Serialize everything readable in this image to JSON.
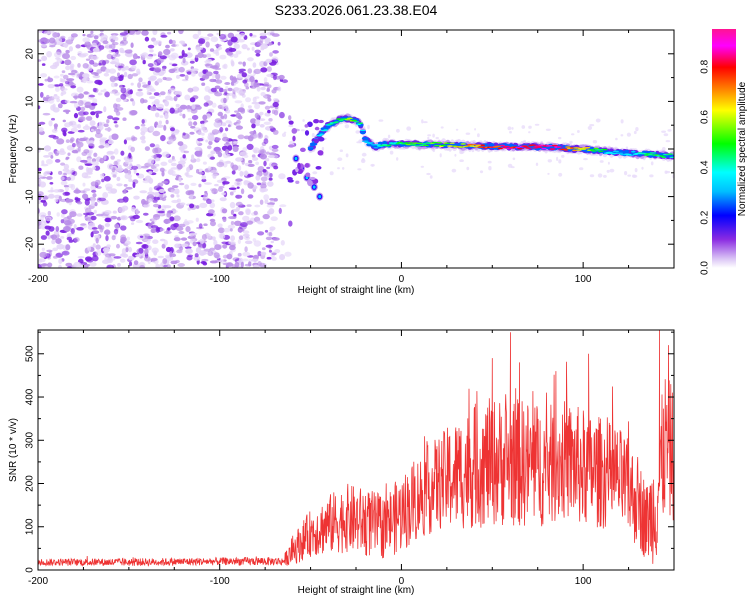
{
  "title": "S233.2026.061.23.38.E04",
  "chart_data": [
    {
      "type": "heatmap",
      "name": "spectrogram",
      "xlabel": "Height of straight line (km)",
      "ylabel": "Frequency (Hz)",
      "xlim": [
        -200,
        150
      ],
      "ylim": [
        -25,
        25
      ],
      "xticks": [
        -200,
        -100,
        0,
        100
      ],
      "xticklabels": [
        "-200",
        "-100",
        "0",
        "100"
      ],
      "yticks": [
        -20,
        -10,
        0,
        10,
        20
      ],
      "yticklabels": [
        "-20",
        "-10",
        "0",
        "10",
        "20"
      ],
      "noise_region_x": [
        -200,
        -68
      ],
      "ridge": {
        "x": [
          -50,
          -45,
          -40,
          -35,
          -30,
          -25,
          -22,
          -20,
          -15,
          -10,
          0,
          20,
          40,
          60,
          80,
          100,
          120,
          140,
          150
        ],
        "freq": [
          0,
          3,
          5,
          6,
          6.5,
          6,
          5,
          2,
          0.5,
          1,
          1,
          1,
          0.6,
          0.5,
          0.4,
          0,
          -0.8,
          -1.2,
          -1.5
        ],
        "peak_amplitude": [
          0.35,
          0.45,
          0.5,
          0.55,
          0.6,
          0.55,
          0.5,
          0.4,
          0.45,
          0.5,
          0.55,
          0.6,
          0.75,
          0.9,
          0.95,
          0.7,
          0.4,
          0.55,
          0.5
        ]
      },
      "branch": {
        "x": [
          -58,
          -55,
          -52,
          -50,
          -48,
          -45
        ],
        "freq": [
          -2,
          -4,
          -6,
          -7,
          -8,
          -10
        ]
      },
      "colorbar": {
        "label": "Normalized spectral amplitude",
        "range": [
          0,
          0.95
        ],
        "ticks": [
          0.0,
          0.2,
          0.4,
          0.6,
          0.8
        ],
        "ticklabels": [
          "0.0",
          "0.2",
          "0.4",
          "0.6",
          "0.8"
        ],
        "colormap": [
          "#ffffff",
          "#d9c2f5",
          "#8a2be2",
          "#0000ff",
          "#00bfff",
          "#00ffff",
          "#00ff00",
          "#ffff00",
          "#ff8000",
          "#ff0000",
          "#ff00ff",
          "#ff1493"
        ]
      }
    },
    {
      "type": "line",
      "name": "snr",
      "xlabel": "Height of straight line (km)",
      "ylabel": "SNR (10 * v/v)",
      "xlim": [
        -200,
        150
      ],
      "ylim": [
        0,
        555
      ],
      "xticks": [
        -200,
        -100,
        0,
        100
      ],
      "xticklabels": [
        "-200",
        "-100",
        "0",
        "100"
      ],
      "yticks": [
        0,
        100,
        200,
        300,
        400,
        500
      ],
      "yticklabels": [
        "0",
        "100",
        "200",
        "300",
        "400",
        "500"
      ],
      "color": "#ee3333",
      "envelope": {
        "x": [
          -200,
          -150,
          -100,
          -65,
          -60,
          -50,
          -40,
          -30,
          -20,
          -10,
          0,
          10,
          20,
          30,
          40,
          50,
          60,
          70,
          80,
          90,
          100,
          110,
          120,
          130,
          135,
          140,
          145,
          150
        ],
        "mean": [
          18,
          18,
          20,
          20,
          45,
          85,
          105,
          120,
          110,
          100,
          130,
          170,
          200,
          220,
          240,
          250,
          250,
          245,
          240,
          255,
          235,
          225,
          210,
          160,
          110,
          150,
          290,
          260
        ],
        "amplitude": [
          8,
          9,
          9,
          10,
          35,
          55,
          70,
          80,
          80,
          75,
          90,
          100,
          110,
          130,
          145,
          150,
          150,
          150,
          140,
          140,
          140,
          130,
          120,
          110,
          90,
          140,
          170,
          160
        ]
      },
      "peaks": [
        {
          "x": 50,
          "y": 490
        },
        {
          "x": 60,
          "y": 550
        },
        {
          "x": 65,
          "y": 480
        },
        {
          "x": 85,
          "y": 460
        },
        {
          "x": 103,
          "y": 500
        },
        {
          "x": 142,
          "y": 555
        },
        {
          "x": 147,
          "y": 520
        }
      ]
    }
  ]
}
